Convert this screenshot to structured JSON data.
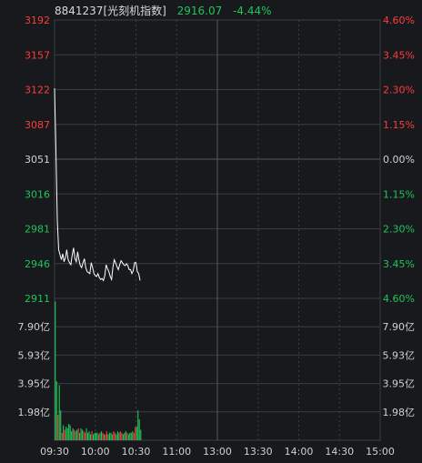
{
  "header": {
    "code_name": "8841237[光刻机指数]",
    "price": "2916.07",
    "change_pct": "-4.44%"
  },
  "chart_data": [
    {
      "type": "line",
      "title": "",
      "xlabel": "",
      "ylabel": "",
      "x_ticks": [
        "09:30",
        "10:00",
        "10:30",
        "11:00",
        "13:00",
        "13:30",
        "14:00",
        "14:30",
        "15:00"
      ],
      "y_left_ticks": [
        "3192",
        "3157",
        "3122",
        "3087",
        "3051",
        "3016",
        "2981",
        "2946",
        "2911"
      ],
      "y_right_ticks": [
        "4.60%",
        "3.45%",
        "2.30%",
        "1.15%",
        "0.00%",
        "1.15%",
        "2.30%",
        "3.45%",
        "4.60%"
      ],
      "ylim": [
        2911,
        3192
      ],
      "prev_close": 3051,
      "grid": true,
      "series": [
        {
          "color": "#ffffff",
          "x": [
            "09:30",
            "09:31",
            "09:32",
            "09:33",
            "09:34",
            "09:35",
            "09:36",
            "09:37",
            "09:38",
            "09:39",
            "09:40",
            "09:41",
            "09:42",
            "09:43",
            "09:44",
            "09:45",
            "09:46",
            "09:47",
            "09:48",
            "09:49",
            "09:50",
            "09:51",
            "09:52",
            "09:53",
            "09:54",
            "09:55",
            "09:56",
            "09:57",
            "09:58",
            "09:59",
            "10:00",
            "10:01",
            "10:02",
            "10:03",
            "10:04",
            "10:05",
            "10:06",
            "10:07",
            "10:08",
            "10:09",
            "10:10",
            "10:11",
            "10:12",
            "10:13",
            "10:14",
            "10:15",
            "10:16",
            "10:17",
            "10:18",
            "10:19",
            "10:20",
            "10:21",
            "10:22",
            "10:23",
            "10:24",
            "10:25",
            "10:26",
            "10:27",
            "10:28",
            "10:29",
            "10:30",
            "10:31",
            "10:32",
            "10:33"
          ],
          "values": [
            3123,
            3060,
            2990,
            2960,
            2955,
            2950,
            2956,
            2948,
            2952,
            2960,
            2950,
            2947,
            2945,
            2955,
            2962,
            2951,
            2948,
            2958,
            2950,
            2944,
            2942,
            2947,
            2951,
            2942,
            2938,
            2937,
            2936,
            2947,
            2942,
            2936,
            2934,
            2933,
            2936,
            2932,
            2930,
            2931,
            2929,
            2934,
            2945,
            2941,
            2938,
            2933,
            2930,
            2942,
            2950,
            2947,
            2943,
            2940,
            2945,
            2949,
            2947,
            2945,
            2944,
            2946,
            2944,
            2940,
            2940,
            2936,
            2939,
            2947,
            2947,
            2938,
            2936,
            2929
          ]
        }
      ]
    },
    {
      "type": "bar",
      "title": "",
      "xlabel": "",
      "ylabel": "",
      "y_ticks": [
        "7.90亿",
        "5.93亿",
        "3.95亿",
        "1.98亿"
      ],
      "ylim": [
        0,
        9.5
      ],
      "unit": "亿",
      "series": [
        {
          "name": "",
          "values": [
            9.3,
            3.95,
            1.7,
            3.7,
            2.0,
            0.5,
            1.0,
            0.7,
            0.9,
            0.8,
            1.1,
            1.0,
            0.6,
            0.8,
            0.7,
            0.6,
            0.7,
            0.8,
            0.5,
            0.8,
            0.7,
            0.6,
            0.5,
            0.8,
            0.5,
            0.6,
            0.4,
            0.6,
            0.4,
            0.5,
            0.5,
            0.5,
            0.4,
            0.5,
            0.6,
            0.5,
            0.4,
            0.4,
            0.6,
            0.4,
            0.5,
            0.5,
            0.4,
            0.6,
            0.5,
            0.4,
            0.6,
            0.5,
            0.6,
            0.5,
            0.4,
            0.5,
            0.6,
            0.5,
            0.4,
            0.5,
            0.5,
            0.6,
            0.5,
            0.9,
            0.9,
            2.0,
            1.4,
            0.7
          ],
          "up": [
            false,
            false,
            true,
            false,
            false,
            true,
            false,
            true,
            false,
            false,
            false,
            false,
            false,
            false,
            true,
            false,
            false,
            true,
            false,
            false,
            false,
            true,
            true,
            false,
            false,
            false,
            false,
            true,
            false,
            false,
            false,
            false,
            true,
            false,
            false,
            true,
            false,
            true,
            true,
            false,
            false,
            false,
            false,
            true,
            true,
            false,
            false,
            false,
            true,
            true,
            false,
            false,
            false,
            true,
            false,
            false,
            false,
            false,
            true,
            true,
            false,
            false,
            false,
            false
          ]
        }
      ]
    }
  ],
  "colors": {
    "background": "#17191d",
    "grid": "#3a3d42",
    "up": "#ff3b3b",
    "down": "#22c35a",
    "neutral": "#d0d0d0",
    "line": "#ffffff"
  }
}
